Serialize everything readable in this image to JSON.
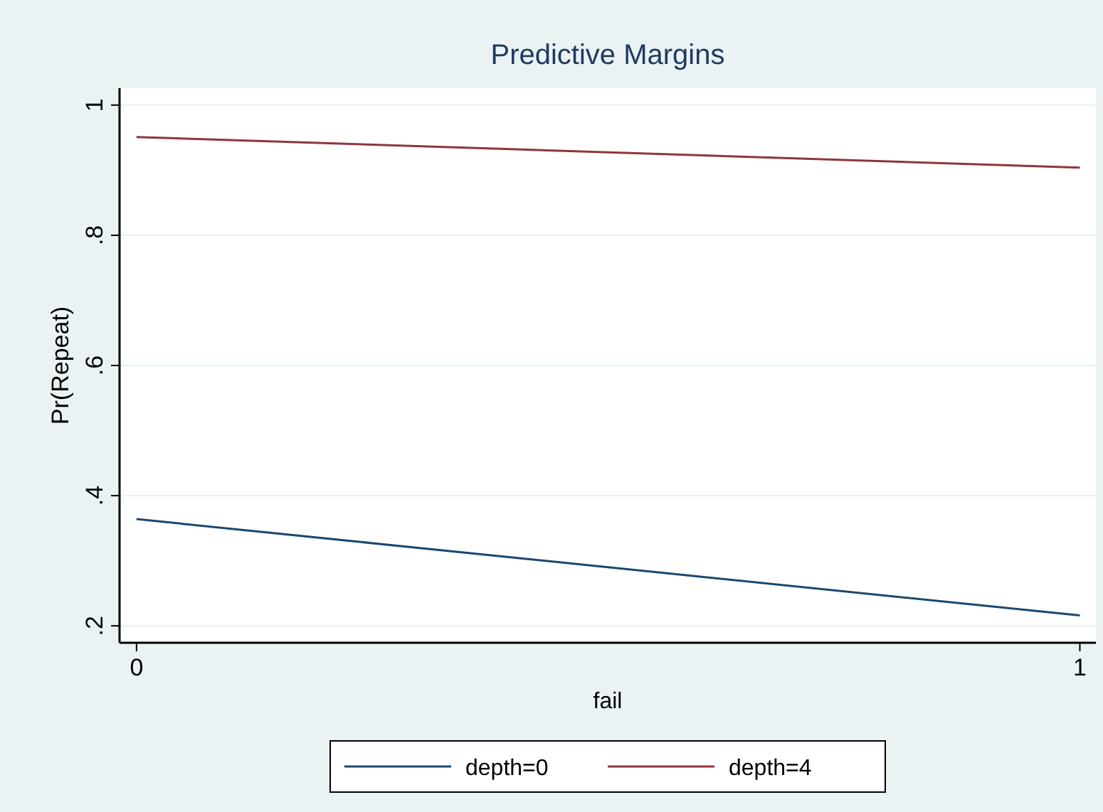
{
  "chart_data": {
    "type": "line",
    "title": "Predictive Margins",
    "xlabel": "fail",
    "ylabel": "Pr(Repeat)",
    "x": [
      0,
      1
    ],
    "series": [
      {
        "name": "depth=0",
        "color": "#1a476f",
        "values": [
          0.364,
          0.216
        ]
      },
      {
        "name": "depth=4",
        "color": "#90353b",
        "values": [
          0.951,
          0.904
        ]
      }
    ],
    "xlim": [
      -0.018,
      1.017
    ],
    "xticks": [
      0,
      1
    ],
    "ylim": [
      0.174,
      1.026
    ],
    "yticks": [
      {
        "value": 0.2,
        "label": ".2"
      },
      {
        "value": 0.4,
        "label": ".4"
      },
      {
        "value": 0.6,
        "label": ".6"
      },
      {
        "value": 0.8,
        "label": ".8"
      },
      {
        "value": 1,
        "label": "1"
      }
    ],
    "grid": "y",
    "legend": "bottom",
    "marker": "none",
    "line_style": "solid"
  }
}
